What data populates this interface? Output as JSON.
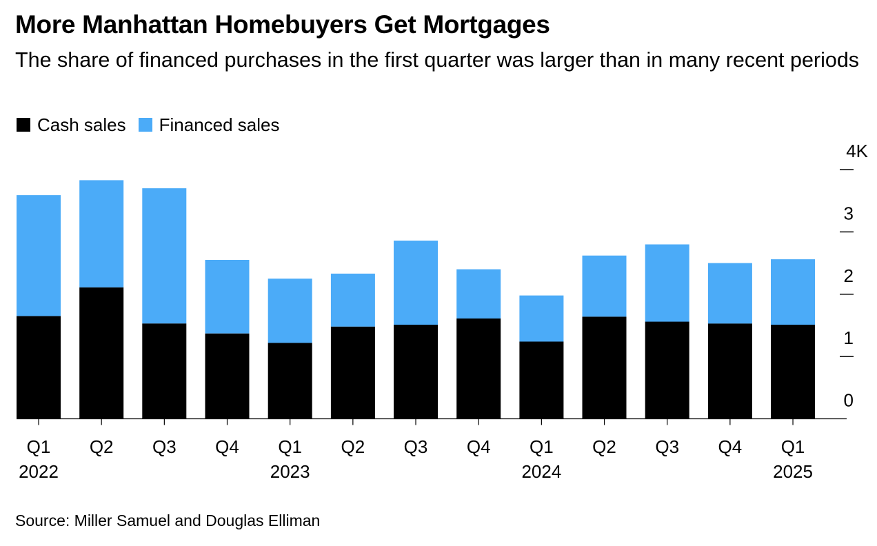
{
  "header": {
    "title": "More Manhattan Homebuyers Get Mortgages",
    "subtitle": "The share of financed purchases in the first quarter was larger than in many recent periods"
  },
  "legend": [
    {
      "label": "Cash sales",
      "color": "#000000"
    },
    {
      "label": "Financed sales",
      "color": "#4BABF8"
    }
  ],
  "footer": {
    "source": "Source: Miller Samuel and Douglas Elliman"
  },
  "chart_data": {
    "type": "bar",
    "stacked": true,
    "title": "More Manhattan Homebuyers Get Mortgages",
    "subtitle": "The share of financed purchases in the first quarter was larger than in many recent periods",
    "xlabel": "",
    "ylabel": "",
    "categories": [
      "Q1 2022",
      "Q2 2022",
      "Q3 2022",
      "Q4 2022",
      "Q1 2023",
      "Q2 2023",
      "Q3 2023",
      "Q4 2023",
      "Q1 2024",
      "Q2 2024",
      "Q3 2024",
      "Q4 2024",
      "Q1 2025"
    ],
    "x_tick_labels": [
      {
        "quarter": "Q1",
        "year": "2022"
      },
      {
        "quarter": "Q2",
        "year": ""
      },
      {
        "quarter": "Q3",
        "year": ""
      },
      {
        "quarter": "Q4",
        "year": ""
      },
      {
        "quarter": "Q1",
        "year": "2023"
      },
      {
        "quarter": "Q2",
        "year": ""
      },
      {
        "quarter": "Q3",
        "year": ""
      },
      {
        "quarter": "Q4",
        "year": ""
      },
      {
        "quarter": "Q1",
        "year": "2024"
      },
      {
        "quarter": "Q2",
        "year": ""
      },
      {
        "quarter": "Q3",
        "year": ""
      },
      {
        "quarter": "Q4",
        "year": ""
      },
      {
        "quarter": "Q1",
        "year": "2025"
      }
    ],
    "series": [
      {
        "name": "Cash sales",
        "color": "#000000",
        "values": [
          1650,
          2110,
          1530,
          1370,
          1220,
          1480,
          1510,
          1610,
          1240,
          1640,
          1560,
          1530,
          1510
        ]
      },
      {
        "name": "Financed sales",
        "color": "#4BABF8",
        "values": [
          1940,
          1720,
          2170,
          1180,
          1030,
          850,
          1350,
          790,
          740,
          980,
          1240,
          970,
          1050
        ]
      }
    ],
    "ylim": [
      0,
      4000
    ],
    "y_ticks": [
      {
        "value": 0,
        "label": "0"
      },
      {
        "value": 1000,
        "label": "1"
      },
      {
        "value": 2000,
        "label": "2"
      },
      {
        "value": 3000,
        "label": "3"
      },
      {
        "value": 4000,
        "label": "4K"
      }
    ],
    "y_axis_position": "right",
    "grid": false,
    "legend_position": "top-left"
  }
}
